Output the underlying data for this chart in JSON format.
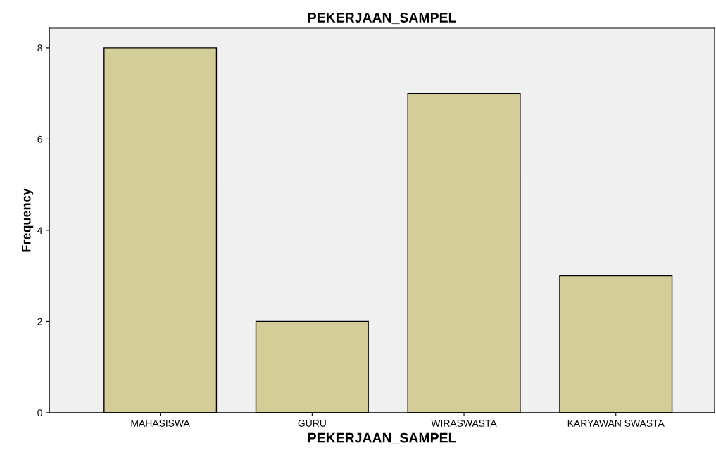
{
  "chart_data": {
    "type": "bar",
    "title": "PEKERJAAN_SAMPEL",
    "xlabel": "PEKERJAAN_SAMPEL",
    "ylabel": "Frequency",
    "categories": [
      "MAHASISWA",
      "GURU",
      "WIRASWASTA",
      "KARYAWAN SWASTA"
    ],
    "values": [
      8,
      2,
      7,
      3
    ],
    "color": "#d3ce97",
    "ylim": [
      0,
      8.43
    ],
    "yticks": [
      0,
      2,
      4,
      6,
      8
    ],
    "grid": false,
    "legend": false
  }
}
